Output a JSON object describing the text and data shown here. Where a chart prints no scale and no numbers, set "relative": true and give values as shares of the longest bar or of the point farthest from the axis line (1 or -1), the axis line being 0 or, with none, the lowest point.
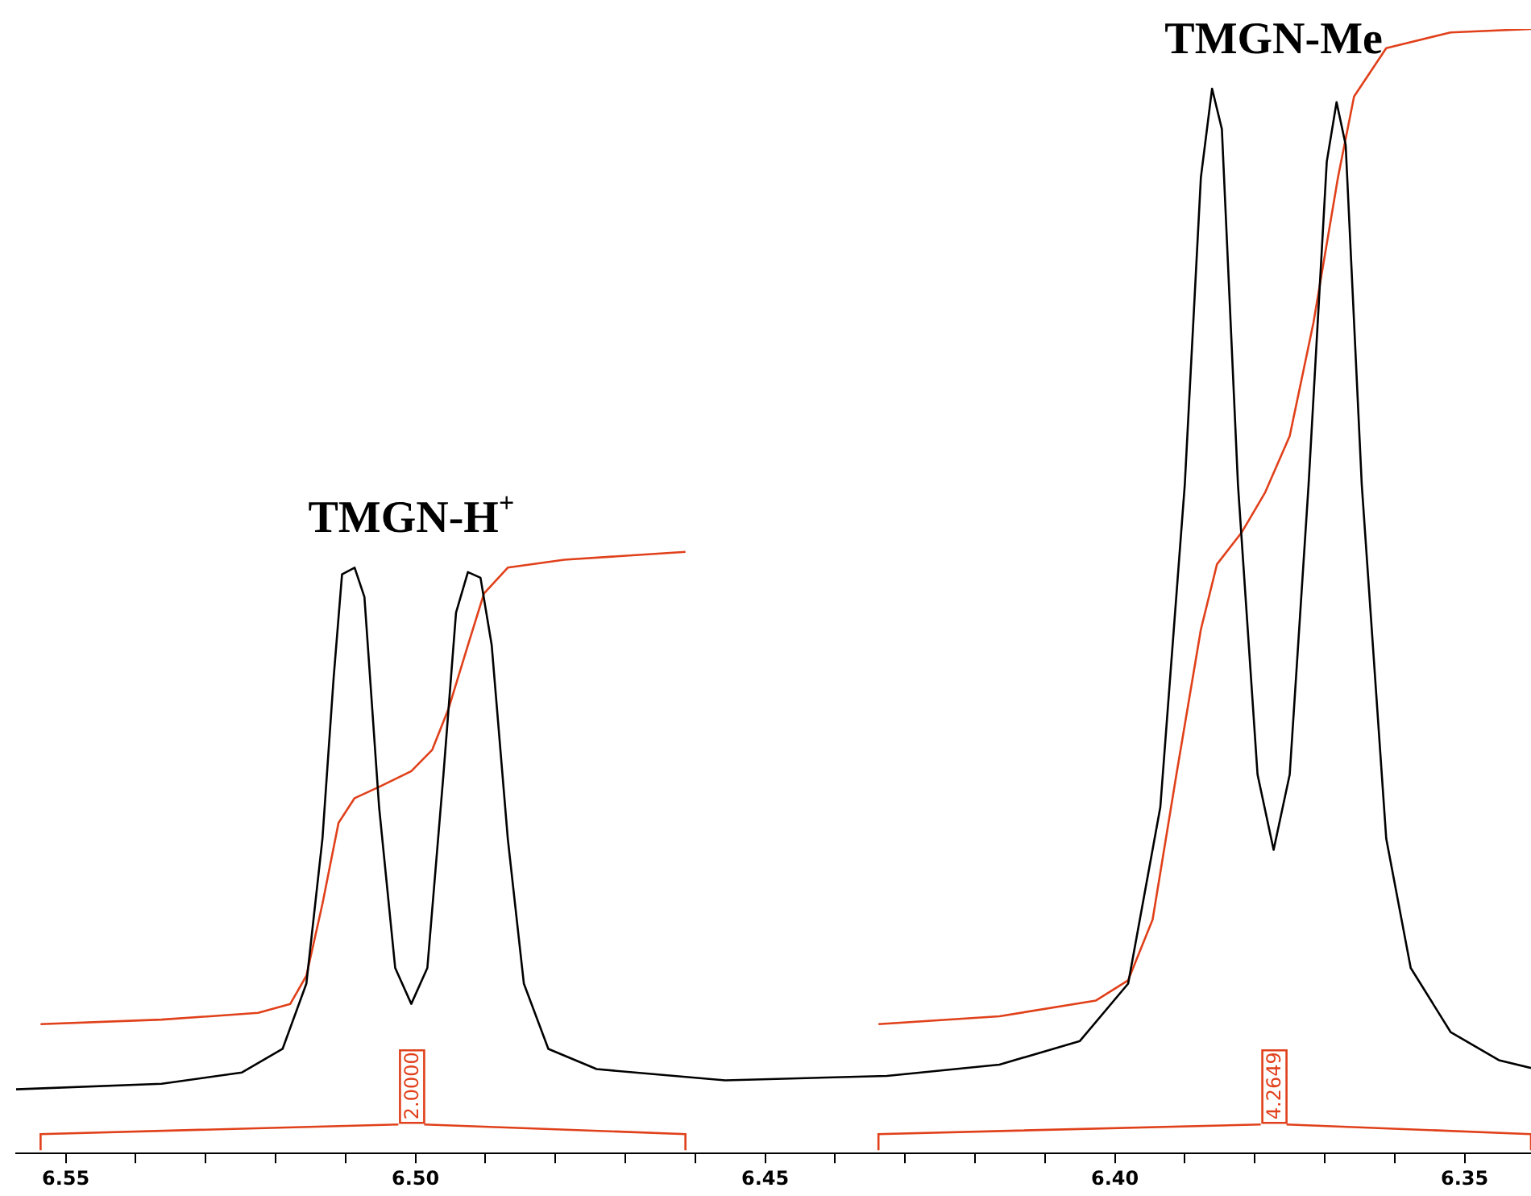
{
  "chart_data": {
    "type": "line",
    "relative": true,
    "legend": false,
    "grid": false,
    "marker": "none",
    "line_style": "solid",
    "tick_labels": "x",
    "xlim": [
      6.5571,
      6.3405
    ],
    "xticks": [
      {
        "value": 6.55,
        "label": "6.55"
      },
      {
        "value": 6.54,
        "label": null
      },
      {
        "value": 6.53,
        "label": null
      },
      {
        "value": 6.52,
        "label": null
      },
      {
        "value": 6.51,
        "label": null
      },
      {
        "value": 6.5,
        "label": "6.50"
      },
      {
        "value": 6.49,
        "label": null
      },
      {
        "value": 6.48,
        "label": null
      },
      {
        "value": 6.47,
        "label": null
      },
      {
        "value": 6.46,
        "label": null
      },
      {
        "value": 6.45,
        "label": "6.45"
      },
      {
        "value": 6.44,
        "label": null
      },
      {
        "value": 6.43,
        "label": null
      },
      {
        "value": 6.42,
        "label": null
      },
      {
        "value": 6.41,
        "label": null
      },
      {
        "value": 6.4,
        "label": "6.40"
      },
      {
        "value": 6.39,
        "label": null
      },
      {
        "value": 6.38,
        "label": null
      },
      {
        "value": 6.37,
        "label": null
      },
      {
        "value": 6.36,
        "label": null
      },
      {
        "value": 6.35,
        "label": "6.35"
      }
    ],
    "series": [
      {
        "color": "#000000",
        "x": [
          6.5571,
          6.5363,
          6.5248,
          6.519,
          6.5156,
          6.5133,
          6.5117,
          6.5105,
          6.5087,
          6.5073,
          6.5052,
          6.5029,
          6.5006,
          6.4983,
          6.496,
          6.4942,
          6.4925,
          6.4907,
          6.4891,
          6.4868,
          6.4845,
          6.481,
          6.4741,
          6.4557,
          6.4326,
          6.4165,
          6.405,
          6.3981,
          6.3935,
          6.39,
          6.3877,
          6.3861,
          6.3847,
          6.3824,
          6.3796,
          6.3773,
          6.375,
          6.3723,
          6.3697,
          6.3683,
          6.367,
          6.3647,
          6.3612,
          6.3577,
          6.352,
          6.3451,
          6.3405
        ],
        "values": [
          0.057,
          0.062,
          0.072,
          0.093,
          0.151,
          0.28,
          0.423,
          0.515,
          0.521,
          0.495,
          0.308,
          0.165,
          0.133,
          0.165,
          0.337,
          0.481,
          0.517,
          0.512,
          0.452,
          0.28,
          0.151,
          0.093,
          0.075,
          0.065,
          0.069,
          0.079,
          0.1,
          0.151,
          0.308,
          0.595,
          0.868,
          0.947,
          0.911,
          0.595,
          0.337,
          0.27,
          0.337,
          0.595,
          0.882,
          0.935,
          0.897,
          0.595,
          0.28,
          0.165,
          0.108,
          0.083,
          0.076
        ]
      },
      {
        "color": "#e0401a",
        "x": [
          6.5536,
          6.5363,
          6.5225,
          6.5179,
          6.5156,
          6.5133,
          6.511,
          6.5087,
          6.5052,
          6.5006,
          6.4976,
          6.4953,
          6.4925,
          6.4902,
          6.4868,
          6.4787,
          6.4614
        ],
        "values": [
          0.115,
          0.119,
          0.125,
          0.133,
          0.158,
          0.222,
          0.294,
          0.316,
          0.326,
          0.34,
          0.359,
          0.395,
          0.452,
          0.498,
          0.521,
          0.528,
          0.535
        ]
      },
      {
        "color": "#e0401a",
        "x": [
          6.4338,
          6.4165,
          6.4027,
          6.3981,
          6.3946,
          6.3912,
          6.3877,
          6.3854,
          6.3819,
          6.3785,
          6.375,
          6.3716,
          6.3681,
          6.3658,
          6.3612,
          6.352,
          6.3405
        ],
        "values": [
          0.115,
          0.122,
          0.136,
          0.154,
          0.208,
          0.337,
          0.466,
          0.524,
          0.552,
          0.588,
          0.638,
          0.739,
          0.868,
          0.94,
          0.983,
          0.997,
          1
        ]
      }
    ],
    "annotations": [
      "TMGN-H$^{+}$",
      "TMGN-Me",
      "2.0000",
      "4.2649"
    ]
  }
}
